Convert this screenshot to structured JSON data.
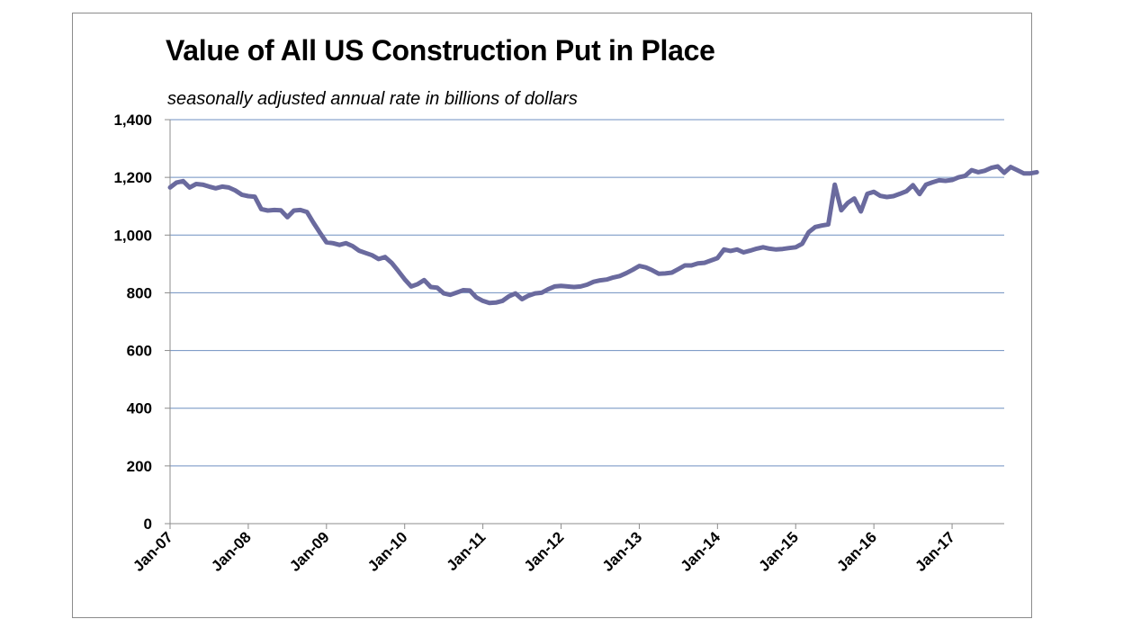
{
  "chart_data": {
    "type": "line",
    "title": "Value of All US Construction Put in Place",
    "subtitle": "seasonally adjusted annual rate in billions of dollars",
    "xlabel": "",
    "ylabel": "",
    "ylim": [
      0,
      1400
    ],
    "yticks": [
      "0",
      "200",
      "400",
      "600",
      "800",
      "1,000",
      "1,200",
      "1,400"
    ],
    "xticks": [
      "Jan-07",
      "Jan-08",
      "Jan-09",
      "Jan-10",
      "Jan-11",
      "Jan-12",
      "Jan-13",
      "Jan-14",
      "Jan-15",
      "Jan-16",
      "Jan-17"
    ],
    "grid": true,
    "legend": "none",
    "line_color": "#6a6a9e",
    "series": [
      {
        "start": "Jan-07",
        "frequency": "monthly",
        "values": [
          1165,
          1182,
          1187,
          1165,
          1177,
          1175,
          1168,
          1162,
          1168,
          1165,
          1155,
          1140,
          1135,
          1133,
          1090,
          1085,
          1087,
          1086,
          1062,
          1085,
          1087,
          1080,
          1043,
          1008,
          975,
          972,
          966,
          972,
          962,
          946,
          938,
          930,
          917,
          924,
          904,
          876,
          847,
          822,
          830,
          844,
          820,
          818,
          798,
          793,
          801,
          809,
          808,
          784,
          772,
          765,
          766,
          772,
          788,
          798,
          778,
          790,
          798,
          800,
          812,
          822,
          824,
          822,
          820,
          822,
          828,
          838,
          843,
          846,
          853,
          858,
          868,
          880,
          893,
          888,
          878,
          866,
          867,
          870,
          882,
          895,
          895,
          902,
          904,
          912,
          920,
          950,
          945,
          950,
          940,
          946,
          953,
          958,
          953,
          950,
          952,
          955,
          958,
          970,
          1010,
          1028,
          1033,
          1037,
          1175,
          1086,
          1112,
          1127,
          1082,
          1143,
          1150,
          1136,
          1132,
          1135,
          1143,
          1152,
          1173,
          1142,
          1175,
          1183,
          1190,
          1188,
          1191,
          1200,
          1205,
          1225,
          1218,
          1223,
          1233,
          1238,
          1216,
          1236,
          1225,
          1214,
          1214,
          1218
        ]
      }
    ]
  }
}
